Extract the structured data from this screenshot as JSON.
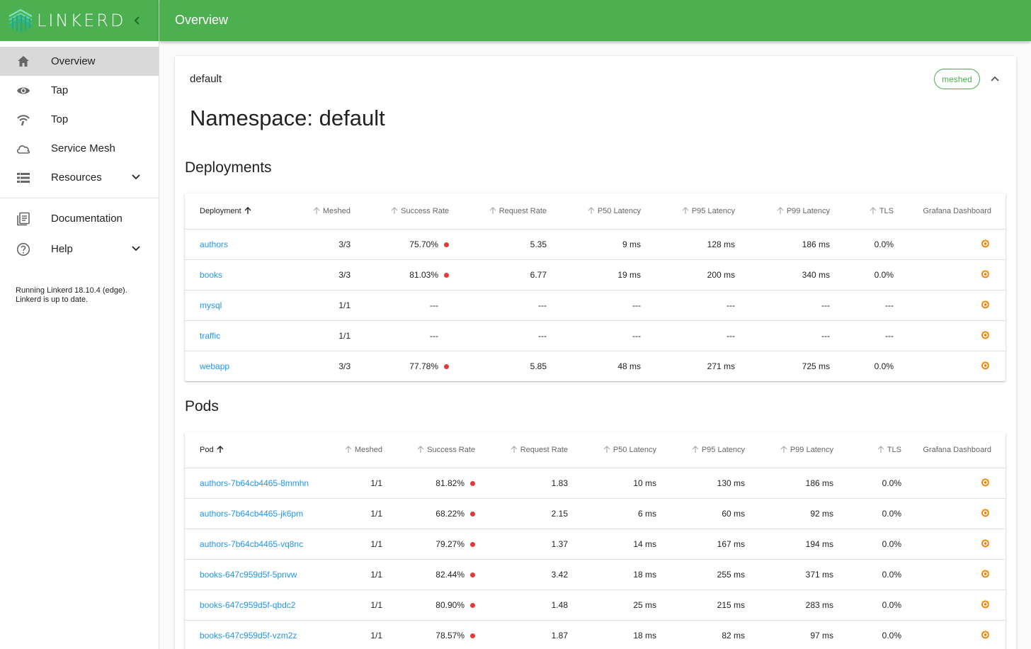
{
  "app": {
    "brand": "LINKERD",
    "brand_color": "#4caf50"
  },
  "header": {
    "title": "Overview"
  },
  "sidebar": {
    "items": [
      {
        "label": "Overview",
        "icon": "home-icon",
        "active": true
      },
      {
        "label": "Tap",
        "icon": "eye-icon"
      },
      {
        "label": "Top",
        "icon": "wifi-icon"
      },
      {
        "label": "Service Mesh",
        "icon": "cloud-icon"
      },
      {
        "label": "Resources",
        "icon": "list-icon",
        "expandable": true
      }
    ],
    "items2": [
      {
        "label": "Documentation",
        "icon": "document-icon"
      },
      {
        "label": "Help",
        "icon": "help-icon",
        "expandable": true
      }
    ],
    "status_line1": "Running Linkerd 18.10.4 (edge).",
    "status_line2": "Linkerd is up to date."
  },
  "namespace": {
    "name": "default",
    "badge": "meshed",
    "title": "Namespace: default"
  },
  "deployments": {
    "title": "Deployments",
    "columns": [
      "Deployment",
      "Meshed",
      "Success Rate",
      "Request Rate",
      "P50 Latency",
      "P95 Latency",
      "P99 Latency",
      "TLS",
      "Grafana Dashboard"
    ],
    "rows": [
      {
        "name": "authors",
        "meshed": "3/3",
        "success": "75.70%",
        "dot": true,
        "rate": "5.35",
        "p50": "9 ms",
        "p95": "128 ms",
        "p99": "186 ms",
        "tls": "0.0%"
      },
      {
        "name": "books",
        "meshed": "3/3",
        "success": "81.03%",
        "dot": true,
        "rate": "6.77",
        "p50": "19 ms",
        "p95": "200 ms",
        "p99": "340 ms",
        "tls": "0.0%"
      },
      {
        "name": "mysql",
        "meshed": "1/1",
        "success": "---",
        "dot": false,
        "rate": "---",
        "p50": "---",
        "p95": "---",
        "p99": "---",
        "tls": "---"
      },
      {
        "name": "traffic",
        "meshed": "1/1",
        "success": "---",
        "dot": false,
        "rate": "---",
        "p50": "---",
        "p95": "---",
        "p99": "---",
        "tls": "---"
      },
      {
        "name": "webapp",
        "meshed": "3/3",
        "success": "77.78%",
        "dot": true,
        "rate": "5.85",
        "p50": "48 ms",
        "p95": "271 ms",
        "p99": "725 ms",
        "tls": "0.0%"
      }
    ]
  },
  "pods": {
    "title": "Pods",
    "columns": [
      "Pod",
      "Meshed",
      "Success Rate",
      "Request Rate",
      "P50 Latency",
      "P95 Latency",
      "P99 Latency",
      "TLS",
      "Grafana Dashboard"
    ],
    "rows": [
      {
        "name": "authors-7b64cb4465-8mmhn",
        "meshed": "1/1",
        "success": "81.82%",
        "dot": true,
        "rate": "1.83",
        "p50": "10 ms",
        "p95": "130 ms",
        "p99": "186 ms",
        "tls": "0.0%"
      },
      {
        "name": "authors-7b64cb4465-jk6pm",
        "meshed": "1/1",
        "success": "68.22%",
        "dot": true,
        "rate": "2.15",
        "p50": "6 ms",
        "p95": "60 ms",
        "p99": "92 ms",
        "tls": "0.0%"
      },
      {
        "name": "authors-7b64cb4465-vq8nc",
        "meshed": "1/1",
        "success": "79.27%",
        "dot": true,
        "rate": "1.37",
        "p50": "14 ms",
        "p95": "167 ms",
        "p99": "194 ms",
        "tls": "0.0%"
      },
      {
        "name": "books-647c959d5f-5pnvw",
        "meshed": "1/1",
        "success": "82.44%",
        "dot": true,
        "rate": "3.42",
        "p50": "18 ms",
        "p95": "255 ms",
        "p99": "371 ms",
        "tls": "0.0%"
      },
      {
        "name": "books-647c959d5f-qbdc2",
        "meshed": "1/1",
        "success": "80.90%",
        "dot": true,
        "rate": "1.48",
        "p50": "25 ms",
        "p95": "215 ms",
        "p99": "283 ms",
        "tls": "0.0%"
      },
      {
        "name": "books-647c959d5f-vzm2z",
        "meshed": "1/1",
        "success": "78.57%",
        "dot": true,
        "rate": "1.87",
        "p50": "18 ms",
        "p95": "82 ms",
        "p99": "97 ms",
        "tls": "0.0%"
      }
    ]
  },
  "colors": {
    "link": "#2196f3",
    "error_dot": "#e53935",
    "grafana": "#f57c00"
  }
}
